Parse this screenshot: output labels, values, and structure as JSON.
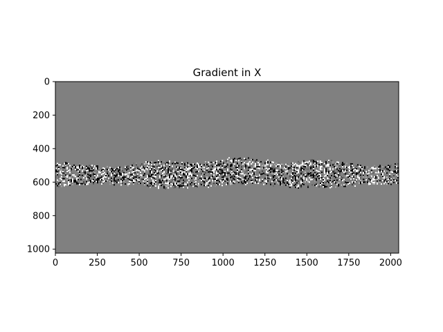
{
  "chart_data": {
    "type": "heatmap",
    "title": "Gradient in X",
    "colormap": "gray",
    "xlim": [
      0,
      2048
    ],
    "ylim": [
      1024,
      0
    ],
    "xticks": [
      0,
      250,
      500,
      750,
      1000,
      1250,
      1500,
      1750,
      2000
    ],
    "yticks": [
      0,
      200,
      400,
      600,
      800,
      1000
    ],
    "xlabel": "",
    "ylabel": "",
    "grid": false,
    "background_value_color": "#808080",
    "band": {
      "y_range": [
        450,
        630
      ],
      "x_range": [
        0,
        2048
      ]
    }
  }
}
